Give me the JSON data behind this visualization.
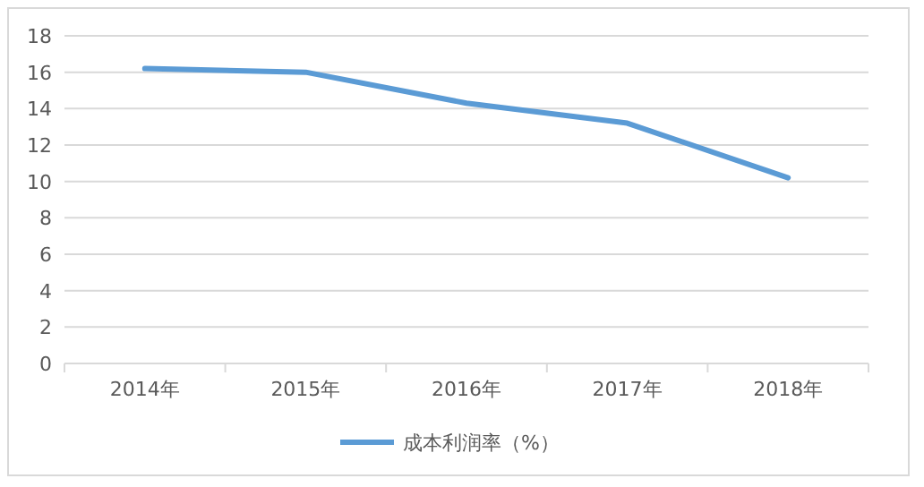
{
  "chart_data": {
    "type": "line",
    "categories": [
      "2014年",
      "2015年",
      "2016年",
      "2017年",
      "2018年"
    ],
    "series": [
      {
        "name": "成本利润率（%）",
        "color": "#5b9bd5",
        "values": [
          16.2,
          16.0,
          14.3,
          13.2,
          10.2
        ]
      }
    ],
    "ylim": [
      0,
      18
    ],
    "yticks": [
      0,
      2,
      4,
      6,
      8,
      10,
      12,
      14,
      16,
      18
    ],
    "grid": "y",
    "legend": "bottom",
    "marker": "none",
    "line_style": "solid"
  }
}
